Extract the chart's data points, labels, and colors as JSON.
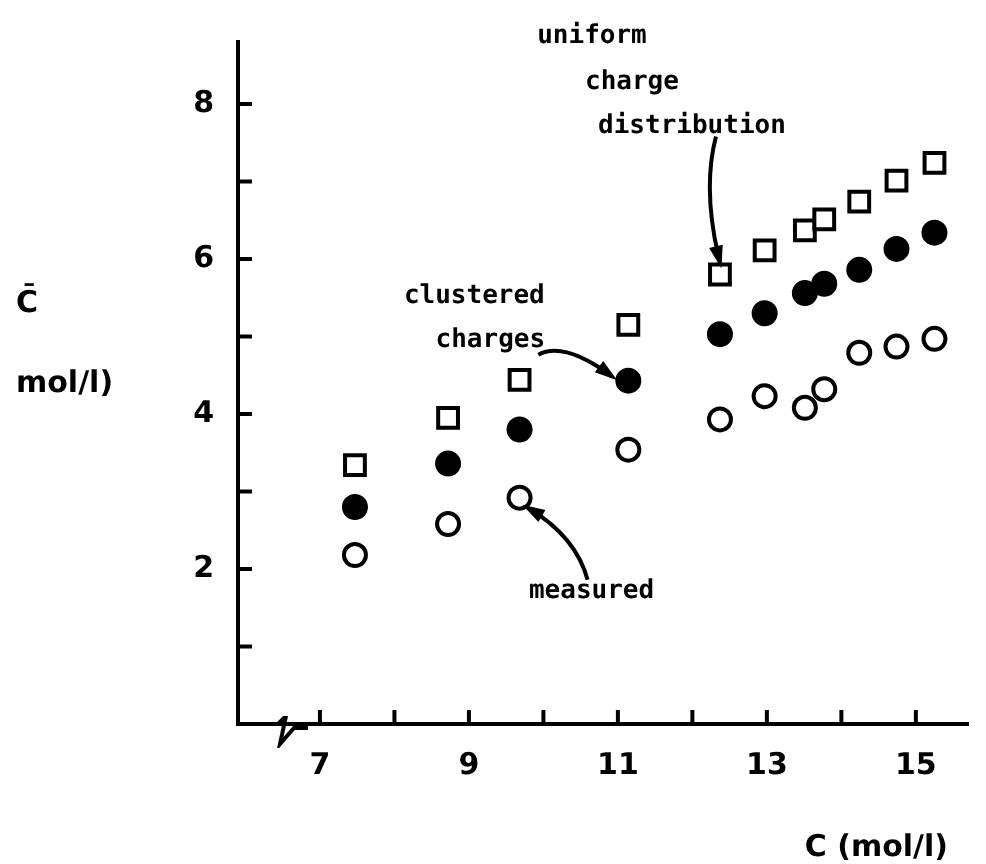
{
  "chart_data": {
    "type": "scatter",
    "xlabel": "C (mol/l)",
    "ylabel": "C̄\nmol/l)",
    "xlim": [
      5.9,
      15.7
    ],
    "ylim": [
      0,
      8.8
    ],
    "xticks": [
      7,
      {
        "value": 8,
        "label": null
      },
      9,
      {
        "value": 10,
        "label": null
      },
      11,
      {
        "value": 12,
        "label": null
      },
      13,
      {
        "value": 14,
        "label": null
      },
      15
    ],
    "yticks": [
      {
        "value": 1,
        "label": null
      },
      2,
      {
        "value": 3,
        "label": null
      },
      4,
      {
        "value": 5,
        "label": null
      },
      6,
      {
        "value": 7,
        "label": null
      },
      8
    ],
    "x": [
      7.47,
      8.72,
      9.68,
      11.14,
      12.37,
      12.97,
      13.51,
      13.77,
      14.24,
      14.74,
      15.25
    ],
    "series": [
      {
        "color": "#000000",
        "marker": "circle-open",
        "values": [
          2.18,
          2.58,
          2.92,
          3.54,
          3.93,
          4.23,
          4.08,
          4.32,
          4.79,
          4.87,
          4.97
        ]
      },
      {
        "color": "#000000",
        "marker": "circle",
        "values": [
          2.8,
          3.36,
          3.8,
          4.43,
          5.03,
          5.3,
          5.56,
          5.68,
          5.86,
          6.13,
          6.34
        ]
      },
      {
        "color": "#000000",
        "marker": "square-open",
        "values": [
          3.34,
          3.95,
          4.44,
          5.15,
          5.8,
          6.11,
          6.37,
          6.51,
          6.74,
          7.01,
          7.24
        ]
      }
    ],
    "annotations": [
      {
        "text": "uniform\ncharge\ndistribution",
        "x": 12.37,
        "y": 5.8
      },
      {
        "text": "clustered\ncharges",
        "x": 11.14,
        "y": 4.43
      },
      {
        "text": "measured",
        "x": 9.68,
        "y": 2.92
      }
    ],
    "grid": false,
    "legend": false
  }
}
